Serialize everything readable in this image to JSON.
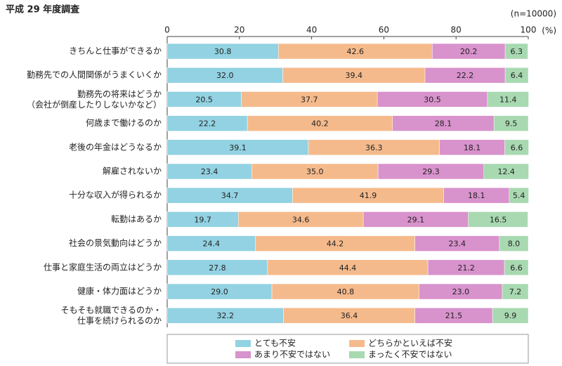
{
  "chart_data": {
    "type": "stacked_barh",
    "title": "平成 29 年度調査",
    "note": "(n=10000)",
    "x_unit": "(%)",
    "xlim": [
      0,
      100
    ],
    "xticks": [
      0,
      20,
      40,
      60,
      80,
      100
    ],
    "legend": "bottom",
    "categories": [
      "きちんと仕事ができるか",
      "勤務先での人間関係がうまくいくか",
      "勤務先の将来はどうか\n（会社が倒産したりしないかなど）",
      "何歳まで働けるのか",
      "老後の年金はどうなるか",
      "解雇されないか",
      "十分な収入が得られるか",
      "転勤はあるか",
      "社会の景気動向はどうか",
      "仕事と家庭生活の両立はどうか",
      "健康・体力面はどうか",
      "そもそも就職できるのか・\n仕事を続けられるのか"
    ],
    "series": [
      {
        "name": "とても不安",
        "color": "#92d2e2",
        "values": [
          30.8,
          32.0,
          20.5,
          22.2,
          39.1,
          23.4,
          34.7,
          19.7,
          24.4,
          27.8,
          29.0,
          32.2
        ],
        "value_labels": [
          "30.8",
          "32.0",
          "20.5",
          "22.2",
          "39.1",
          "23.4",
          "34.7",
          "19.7",
          "24.4",
          "27.8",
          "29.0",
          "32.2"
        ]
      },
      {
        "name": "どちらかといえば不安",
        "color": "#f5ba8c",
        "values": [
          42.6,
          39.4,
          37.7,
          40.2,
          36.3,
          35.0,
          41.9,
          34.6,
          44.2,
          44.4,
          40.8,
          36.4
        ],
        "value_labels": [
          "42.6",
          "39.4",
          "37.7",
          "40.2",
          "36.3",
          "35.0",
          "41.9",
          "34.6",
          "44.2",
          "44.4",
          "40.8",
          "36.4"
        ]
      },
      {
        "name": "あまり不安ではない",
        "color": "#d892cc",
        "values": [
          20.2,
          22.2,
          30.5,
          28.1,
          18.1,
          29.3,
          18.1,
          29.1,
          23.4,
          21.2,
          23.0,
          21.5
        ],
        "value_labels": [
          "20.2",
          "22.2",
          "30.5",
          "28.1",
          "18.1",
          "29.3",
          "18.1",
          "29.1",
          "23.4",
          "21.2",
          "23.0",
          "21.5"
        ]
      },
      {
        "name": "まったく不安ではない",
        "color": "#a8d9b1",
        "values": [
          6.3,
          6.4,
          11.4,
          9.5,
          6.6,
          12.4,
          5.4,
          16.5,
          8.0,
          6.6,
          7.2,
          9.9
        ],
        "value_labels": [
          "6.3",
          "6.4",
          "11.4",
          "9.5",
          "6.6",
          "12.4",
          "5.4",
          "16.5",
          "8.0",
          "6.6",
          "7.2",
          "9.9"
        ]
      }
    ]
  }
}
